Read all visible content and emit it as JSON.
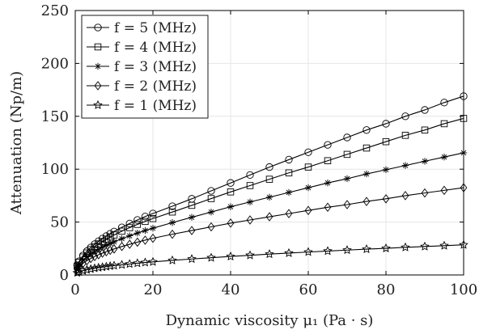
{
  "chart_data": {
    "type": "line",
    "xlabel": "Dynamic viscosity μ₁ (Pa · s)",
    "ylabel": "Attenuation (Np/m)",
    "xlim": [
      0,
      100
    ],
    "ylim": [
      0,
      250
    ],
    "xticks": [
      "0",
      "20",
      "40",
      "60",
      "80",
      "100"
    ],
    "yticks": [
      "0",
      "50",
      "100",
      "150",
      "200",
      "250"
    ],
    "grid": true,
    "legend_position": "top-left",
    "colors": {
      "line": "#000000",
      "grid": "#e6e6e6"
    },
    "x": [
      0.5,
      1,
      2,
      3,
      4,
      5,
      6,
      7,
      8,
      9,
      10,
      12,
      14,
      16,
      18,
      20,
      25,
      30,
      35,
      40,
      45,
      50,
      55,
      60,
      65,
      70,
      75,
      80,
      85,
      90,
      95,
      100
    ],
    "series": [
      {
        "name": "f = 5 (MHz)",
        "marker": "circle",
        "values": [
          9.2,
          13.0,
          18.4,
          22.5,
          26.0,
          29.1,
          31.9,
          34.4,
          36.8,
          39.0,
          41.1,
          45.0,
          48.6,
          52.0,
          55.2,
          58.1,
          65.0,
          72.0,
          79.5,
          87.0,
          94.5,
          102,
          109,
          116,
          123,
          130,
          137,
          143,
          150,
          156,
          163,
          169
        ]
      },
      {
        "name": "f = 4 (MHz)",
        "marker": "square",
        "values": [
          8.5,
          12.0,
          17.0,
          20.8,
          24.0,
          26.8,
          29.4,
          31.7,
          33.9,
          35.9,
          37.8,
          41.4,
          44.7,
          47.8,
          50.6,
          53.3,
          59.5,
          65.8,
          72.2,
          78.5,
          84.5,
          90.5,
          96.5,
          102,
          108,
          114,
          120,
          126,
          132,
          137,
          143,
          148
        ]
      },
      {
        "name": "f = 3 (MHz)",
        "marker": "asterisk",
        "values": [
          7.0,
          9.9,
          14.0,
          17.2,
          19.8,
          22.1,
          24.2,
          26.2,
          28.0,
          29.7,
          31.3,
          34.3,
          37.0,
          39.6,
          42.0,
          44.2,
          49.5,
          54.5,
          59.5,
          64.5,
          69.0,
          73.5,
          78.0,
          82.5,
          87.0,
          91.0,
          95.5,
          99.5,
          103.5,
          107.5,
          111.5,
          115.5
        ]
      },
      {
        "name": "f = 2 (MHz)",
        "marker": "diamond",
        "values": [
          5.5,
          7.8,
          11.0,
          13.5,
          15.6,
          17.4,
          19.1,
          20.6,
          22.0,
          23.3,
          24.6,
          26.9,
          29.0,
          31.0,
          32.9,
          34.7,
          38.5,
          42.0,
          45.5,
          49.0,
          52.0,
          55.0,
          58.0,
          61.0,
          64.0,
          66.5,
          69.5,
          72.0,
          75.0,
          77.5,
          80.0,
          82.5
        ]
      },
      {
        "name": "f = 1 (MHz)",
        "marker": "star",
        "values": [
          2.0,
          2.8,
          4.0,
          4.9,
          5.6,
          6.3,
          6.9,
          7.4,
          7.9,
          8.4,
          8.8,
          9.6,
          10.4,
          11.1,
          11.8,
          12.4,
          13.8,
          15.1,
          16.3,
          17.5,
          18.6,
          19.7,
          20.7,
          21.7,
          22.6,
          23.5,
          24.4,
          25.2,
          26.1,
          26.9,
          27.7,
          28.5
        ]
      }
    ]
  }
}
